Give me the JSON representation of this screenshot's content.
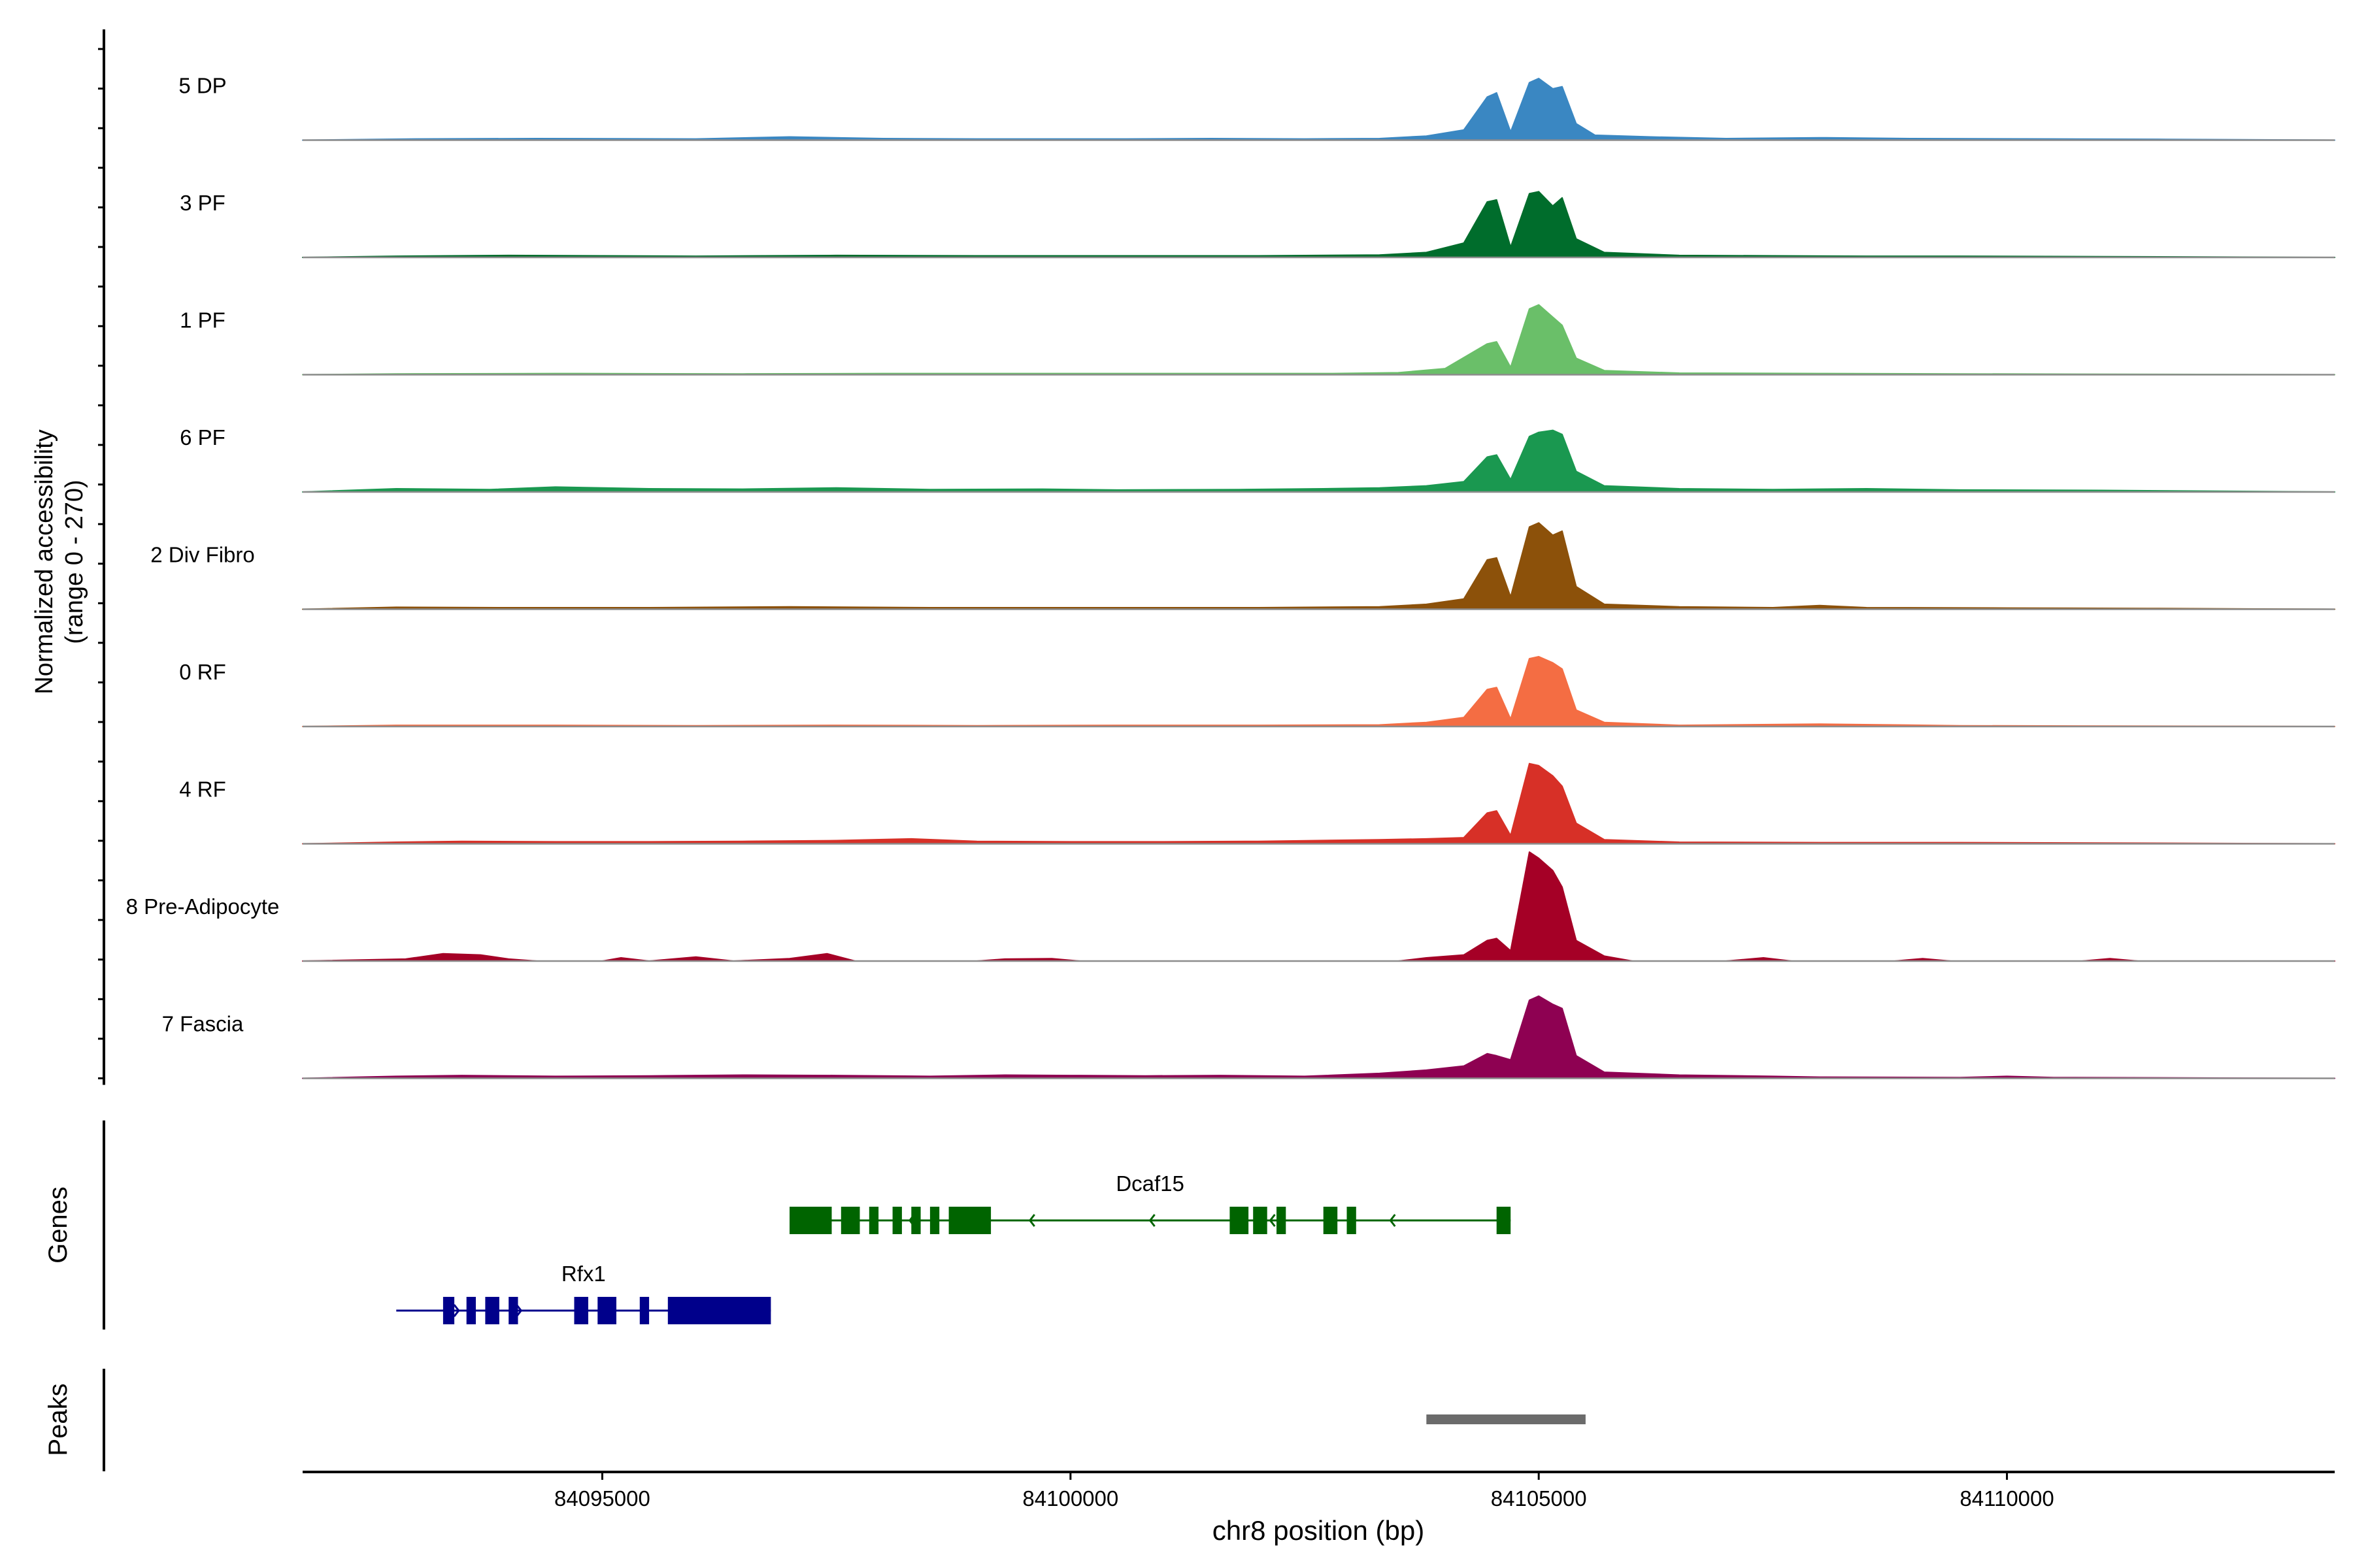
{
  "chart_data": {
    "type": "area",
    "title": "",
    "xlabel": "chr8 position (bp)",
    "ylabel": "Normalized accessibility",
    "ylabel_range": "(range 0 - 270)",
    "xlim": [
      84091800,
      84113500
    ],
    "ylim": [
      0,
      270
    ],
    "xticks": [
      84095000,
      84100000,
      84105000,
      84110000
    ],
    "xtick_labels": [
      "84095000",
      "84100000",
      "84105000",
      "84110000"
    ],
    "genes_label": "Genes",
    "peaks_label": "Peaks",
    "series": [
      {
        "name": "5 DP",
        "color": "#3a87c2",
        "points": [
          [
            84091800,
            0
          ],
          [
            84093000,
            3
          ],
          [
            84094300,
            4
          ],
          [
            84096000,
            3
          ],
          [
            84097000,
            8
          ],
          [
            84098000,
            4
          ],
          [
            84099000,
            3
          ],
          [
            84100600,
            3
          ],
          [
            84101500,
            4
          ],
          [
            84102500,
            3
          ],
          [
            84103300,
            4
          ],
          [
            84103800,
            10
          ],
          [
            84104200,
            25
          ],
          [
            84104450,
            105
          ],
          [
            84104550,
            115
          ],
          [
            84104700,
            20
          ],
          [
            84104900,
            140
          ],
          [
            84105000,
            150
          ],
          [
            84105150,
            125
          ],
          [
            84105250,
            130
          ],
          [
            84105400,
            40
          ],
          [
            84105600,
            12
          ],
          [
            84106200,
            8
          ],
          [
            84107000,
            4
          ],
          [
            84108000,
            6
          ],
          [
            84109000,
            4
          ],
          [
            84110500,
            3
          ],
          [
            84111700,
            2
          ],
          [
            84113500,
            0
          ]
        ]
      },
      {
        "name": "3 PF",
        "color": "#006d2c",
        "points": [
          [
            84091800,
            0
          ],
          [
            84092800,
            3
          ],
          [
            84094000,
            5
          ],
          [
            84096000,
            3
          ],
          [
            84097500,
            5
          ],
          [
            84099000,
            4
          ],
          [
            84100800,
            4
          ],
          [
            84102000,
            4
          ],
          [
            84103300,
            6
          ],
          [
            84103800,
            12
          ],
          [
            84104200,
            35
          ],
          [
            84104450,
            135
          ],
          [
            84104550,
            140
          ],
          [
            84104700,
            25
          ],
          [
            84104900,
            155
          ],
          [
            84105000,
            160
          ],
          [
            84105150,
            125
          ],
          [
            84105250,
            145
          ],
          [
            84105400,
            45
          ],
          [
            84105700,
            12
          ],
          [
            84106500,
            5
          ],
          [
            84107500,
            4
          ],
          [
            84108500,
            3
          ],
          [
            84109500,
            3
          ],
          [
            84111000,
            2
          ],
          [
            84113500,
            0
          ]
        ]
      },
      {
        "name": "1 PF",
        "color": "#6abf69",
        "points": [
          [
            84091800,
            0
          ],
          [
            84092800,
            2
          ],
          [
            84094500,
            3
          ],
          [
            84096500,
            2
          ],
          [
            84098000,
            3
          ],
          [
            84100000,
            3
          ],
          [
            84101500,
            3
          ],
          [
            84102800,
            3
          ],
          [
            84103500,
            5
          ],
          [
            84104000,
            15
          ],
          [
            84104450,
            75
          ],
          [
            84104550,
            80
          ],
          [
            84104700,
            18
          ],
          [
            84104900,
            160
          ],
          [
            84105000,
            170
          ],
          [
            84105150,
            140
          ],
          [
            84105250,
            120
          ],
          [
            84105400,
            40
          ],
          [
            84105700,
            10
          ],
          [
            84106500,
            4
          ],
          [
            84108000,
            3
          ],
          [
            84109500,
            2
          ],
          [
            84113500,
            0
          ]
        ]
      },
      {
        "name": "6 PF",
        "color": "#1a9850",
        "points": [
          [
            84091800,
            0
          ],
          [
            84092800,
            8
          ],
          [
            84093800,
            6
          ],
          [
            84094500,
            12
          ],
          [
            84095500,
            8
          ],
          [
            84096500,
            7
          ],
          [
            84097500,
            10
          ],
          [
            84098500,
            6
          ],
          [
            84099700,
            7
          ],
          [
            84100500,
            5
          ],
          [
            84101800,
            6
          ],
          [
            84102700,
            8
          ],
          [
            84103300,
            10
          ],
          [
            84103800,
            15
          ],
          [
            84104200,
            25
          ],
          [
            84104450,
            85
          ],
          [
            84104550,
            90
          ],
          [
            84104700,
            30
          ],
          [
            84104900,
            135
          ],
          [
            84105000,
            145
          ],
          [
            84105150,
            150
          ],
          [
            84105250,
            140
          ],
          [
            84105400,
            50
          ],
          [
            84105700,
            15
          ],
          [
            84106500,
            8
          ],
          [
            84107500,
            6
          ],
          [
            84108500,
            8
          ],
          [
            84109500,
            5
          ],
          [
            84111000,
            4
          ],
          [
            84113500,
            0
          ]
        ]
      },
      {
        "name": "2 Div Fibro",
        "color": "#8c510a",
        "points": [
          [
            84091800,
            0
          ],
          [
            84092800,
            5
          ],
          [
            84094000,
            4
          ],
          [
            84095500,
            4
          ],
          [
            84097000,
            6
          ],
          [
            84098500,
            4
          ],
          [
            84099500,
            4
          ],
          [
            84100800,
            4
          ],
          [
            84102000,
            4
          ],
          [
            84103300,
            6
          ],
          [
            84103800,
            12
          ],
          [
            84104200,
            25
          ],
          [
            84104450,
            120
          ],
          [
            84104550,
            125
          ],
          [
            84104700,
            30
          ],
          [
            84104900,
            200
          ],
          [
            84105000,
            210
          ],
          [
            84105150,
            180
          ],
          [
            84105250,
            190
          ],
          [
            84105400,
            55
          ],
          [
            84105700,
            12
          ],
          [
            84106500,
            6
          ],
          [
            84107500,
            4
          ],
          [
            84108000,
            9
          ],
          [
            84108500,
            4
          ],
          [
            84110000,
            3
          ],
          [
            84111500,
            2
          ],
          [
            84113500,
            0
          ]
        ]
      },
      {
        "name": "0 RF",
        "color": "#f46d43",
        "points": [
          [
            84091800,
            0
          ],
          [
            84092800,
            3
          ],
          [
            84094500,
            3
          ],
          [
            84096000,
            2
          ],
          [
            84097500,
            3
          ],
          [
            84099000,
            2
          ],
          [
            84100500,
            3
          ],
          [
            84102000,
            3
          ],
          [
            84103300,
            4
          ],
          [
            84103800,
            10
          ],
          [
            84104200,
            22
          ],
          [
            84104450,
            90
          ],
          [
            84104550,
            95
          ],
          [
            84104700,
            18
          ],
          [
            84104900,
            165
          ],
          [
            84105000,
            170
          ],
          [
            84105150,
            155
          ],
          [
            84105250,
            140
          ],
          [
            84105400,
            40
          ],
          [
            84105700,
            10
          ],
          [
            84106500,
            3
          ],
          [
            84108000,
            6
          ],
          [
            84109500,
            2
          ],
          [
            84113500,
            0
          ]
        ]
      },
      {
        "name": "4 RF",
        "color": "#d73027",
        "points": [
          [
            84091800,
            0
          ],
          [
            84092800,
            4
          ],
          [
            84093500,
            6
          ],
          [
            84094500,
            5
          ],
          [
            84095500,
            5
          ],
          [
            84096500,
            6
          ],
          [
            84097500,
            8
          ],
          [
            84098300,
            12
          ],
          [
            84099000,
            6
          ],
          [
            84100000,
            5
          ],
          [
            84101000,
            5
          ],
          [
            84102000,
            6
          ],
          [
            84103300,
            10
          ],
          [
            84103800,
            12
          ],
          [
            84104200,
            15
          ],
          [
            84104450,
            75
          ],
          [
            84104550,
            80
          ],
          [
            84104700,
            20
          ],
          [
            84104900,
            195
          ],
          [
            84105000,
            190
          ],
          [
            84105150,
            165
          ],
          [
            84105250,
            140
          ],
          [
            84105400,
            50
          ],
          [
            84105700,
            10
          ],
          [
            84106500,
            4
          ],
          [
            84108000,
            3
          ],
          [
            84109500,
            3
          ],
          [
            84111000,
            2
          ],
          [
            84113500,
            0
          ]
        ]
      },
      {
        "name": "8 Pre-Adipocyte",
        "color": "#a50026",
        "points": [
          [
            84091800,
            0
          ],
          [
            84092900,
            5
          ],
          [
            84093300,
            18
          ],
          [
            84093700,
            15
          ],
          [
            84094000,
            5
          ],
          [
            84094300,
            0
          ],
          [
            84095000,
            0
          ],
          [
            84095200,
            8
          ],
          [
            84095500,
            0
          ],
          [
            84096000,
            10
          ],
          [
            84096400,
            0
          ],
          [
            84097000,
            6
          ],
          [
            84097400,
            18
          ],
          [
            84097700,
            0
          ],
          [
            84099000,
            0
          ],
          [
            84099300,
            5
          ],
          [
            84099800,
            6
          ],
          [
            84100100,
            0
          ],
          [
            84103500,
            0
          ],
          [
            84103800,
            8
          ],
          [
            84104200,
            15
          ],
          [
            84104450,
            50
          ],
          [
            84104550,
            55
          ],
          [
            84104700,
            25
          ],
          [
            84104900,
            265
          ],
          [
            84105000,
            250
          ],
          [
            84105150,
            220
          ],
          [
            84105250,
            180
          ],
          [
            84105400,
            50
          ],
          [
            84105700,
            12
          ],
          [
            84106000,
            0
          ],
          [
            84107000,
            0
          ],
          [
            84107400,
            8
          ],
          [
            84107700,
            0
          ],
          [
            84108800,
            0
          ],
          [
            84109100,
            6
          ],
          [
            84109400,
            0
          ],
          [
            84110800,
            0
          ],
          [
            84111100,
            6
          ],
          [
            84111400,
            0
          ],
          [
            84113500,
            0
          ]
        ]
      },
      {
        "name": "7 Fascia",
        "color": "#8e0152",
        "points": [
          [
            84091800,
            0
          ],
          [
            84092800,
            5
          ],
          [
            84093500,
            7
          ],
          [
            84094500,
            5
          ],
          [
            84095500,
            6
          ],
          [
            84096500,
            8
          ],
          [
            84097500,
            7
          ],
          [
            84098500,
            5
          ],
          [
            84099300,
            8
          ],
          [
            84100000,
            7
          ],
          [
            84100800,
            6
          ],
          [
            84101600,
            7
          ],
          [
            84102500,
            5
          ],
          [
            84103300,
            12
          ],
          [
            84103800,
            20
          ],
          [
            84104200,
            30
          ],
          [
            84104450,
            60
          ],
          [
            84104550,
            55
          ],
          [
            84104700,
            45
          ],
          [
            84104900,
            190
          ],
          [
            84105000,
            200
          ],
          [
            84105150,
            180
          ],
          [
            84105250,
            170
          ],
          [
            84105400,
            55
          ],
          [
            84105700,
            15
          ],
          [
            84106500,
            8
          ],
          [
            84107500,
            5
          ],
          [
            84108000,
            3
          ],
          [
            84109500,
            2
          ],
          [
            84110000,
            5
          ],
          [
            84110500,
            2
          ],
          [
            84113500,
            0
          ]
        ]
      }
    ],
    "genes": [
      {
        "name": "Rfx1",
        "color": "#00008b",
        "strand": "+",
        "start": 84092800,
        "end": 84096800,
        "exons": [
          [
            84093300,
            84093420
          ],
          [
            84093550,
            84093650
          ],
          [
            84093750,
            84093900
          ],
          [
            84094000,
            84094100
          ],
          [
            84094700,
            84094850
          ],
          [
            84094950,
            84095150
          ],
          [
            84095400,
            84095500
          ],
          [
            84095700,
            84096800
          ]
        ]
      },
      {
        "name": "Dcaf15",
        "color": "#006400",
        "strand": "-",
        "start": 84097000,
        "end": 84104700,
        "exons": [
          [
            84097000,
            84097450
          ],
          [
            84097550,
            84097750
          ],
          [
            84097850,
            84097950
          ],
          [
            84098100,
            84098200
          ],
          [
            84098300,
            84098400
          ],
          [
            84098500,
            84098600
          ],
          [
            84098700,
            84099150
          ],
          [
            84101700,
            84101900
          ],
          [
            84101950,
            84102100
          ],
          [
            84102200,
            84102300
          ],
          [
            84102700,
            84102850
          ],
          [
            84102950,
            84103050
          ],
          [
            84104550,
            84104700
          ]
        ]
      }
    ],
    "peaks": [
      [
        84103800,
        84105500
      ]
    ]
  }
}
